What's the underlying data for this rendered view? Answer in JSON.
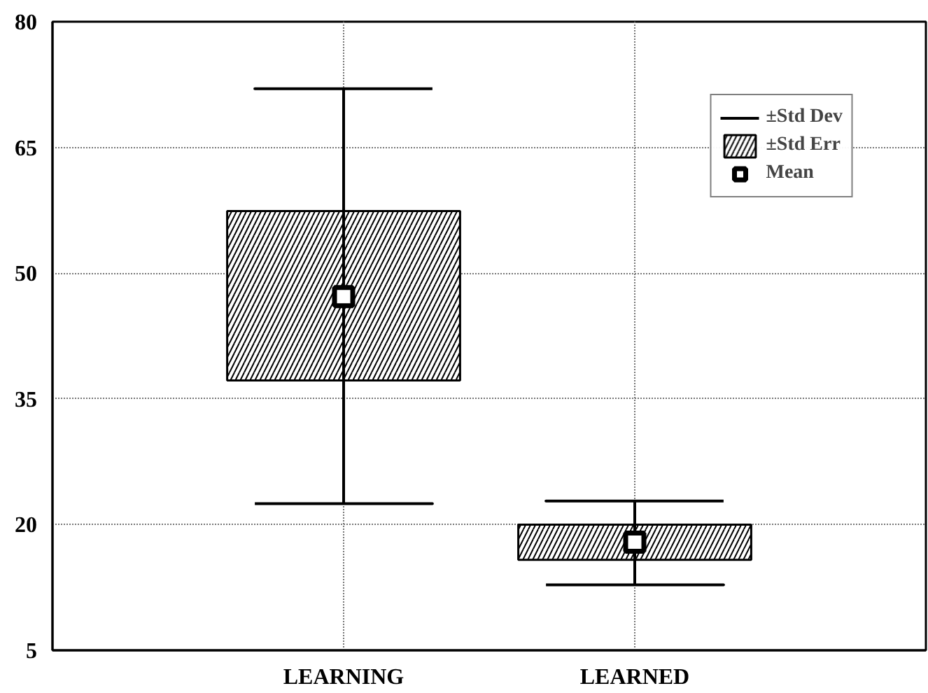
{
  "chart_data": {
    "type": "bar",
    "categories": [
      "LEARNING",
      "LEARNED"
    ],
    "ylim": [
      5,
      80
    ],
    "yticks": [
      5,
      20,
      35,
      50,
      65,
      80
    ],
    "grid": true,
    "legend": "top right",
    "series": [
      {
        "name": "±Std Dev",
        "type": "scatter",
        "marker": "none",
        "color": "#000000",
        "values": [
          null,
          null
        ]
      },
      {
        "name": "±Std Err",
        "color": "#ffffff",
        "base": [
          37.2,
          15.8
        ],
        "values": [
          20.2,
          4.2
        ]
      },
      {
        "name": "Mean",
        "type": "scatter",
        "marker": "square",
        "color": "#000000",
        "values": [
          47.2,
          17.9
        ],
        "errors": [
          [
            22.5,
            72
          ],
          [
            12.8,
            22.8
          ]
        ]
      }
    ]
  }
}
